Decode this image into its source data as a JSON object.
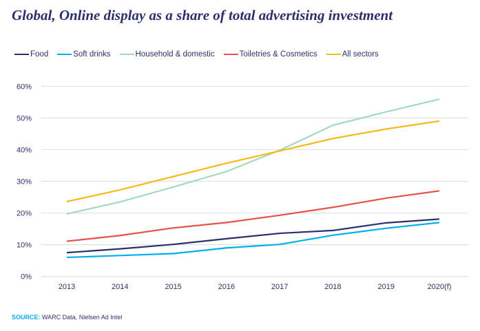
{
  "chart_data": {
    "type": "line",
    "title": "Global, Online display as a share of total advertising investment",
    "categories": [
      "2013",
      "2014",
      "2015",
      "2016",
      "2017",
      "2018",
      "2019",
      "2020(f)"
    ],
    "ylim": [
      0,
      60
    ],
    "yticks": [
      0,
      10,
      20,
      30,
      40,
      50,
      60
    ],
    "ytick_labels": [
      "0%",
      "10%",
      "20%",
      "30%",
      "40%",
      "50%",
      "60%"
    ],
    "grid": true,
    "legend_position": "top-left",
    "series": [
      {
        "name": "Food",
        "color": "#2b2f6b",
        "values": [
          7.5,
          8.7,
          10.1,
          11.9,
          13.6,
          14.5,
          16.9,
          18.1
        ]
      },
      {
        "name": "Soft drinks",
        "color": "#00aeef",
        "values": [
          6.0,
          6.6,
          7.2,
          9.0,
          10.1,
          13.0,
          15.2,
          17.0
        ]
      },
      {
        "name": "Household & domestic",
        "color": "#a3d9c1",
        "values": [
          19.7,
          23.5,
          28.2,
          33.1,
          39.8,
          47.7,
          51.9,
          55.9
        ]
      },
      {
        "name": "Toiletries & Cosmetics",
        "color": "#e8514a",
        "values": [
          11.1,
          12.9,
          15.3,
          17.0,
          19.3,
          21.8,
          24.7,
          27.0
        ]
      },
      {
        "name": "All sectors",
        "color": "#f5b814",
        "values": [
          23.6,
          27.3,
          31.5,
          35.7,
          39.6,
          43.5,
          46.5,
          49.0
        ]
      }
    ]
  },
  "source": {
    "label": "SOURCE:",
    "text": " WARC Data, Nielsen Ad Intel"
  }
}
